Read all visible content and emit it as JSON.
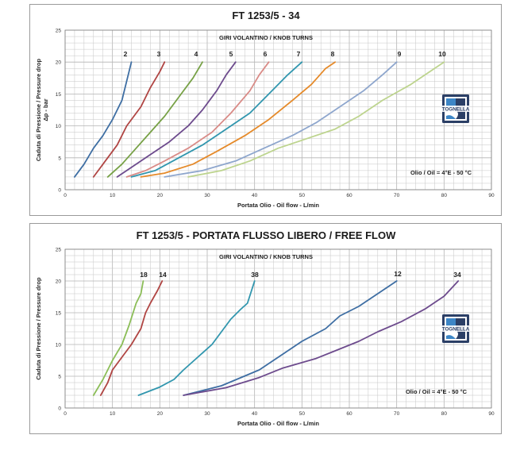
{
  "logo_text": "TOGNELLA",
  "colors": {
    "grid": "#c6c6c6",
    "axis": "#7f7f7f",
    "logo_dark": "#2b3f66",
    "logo_blue": "#3d86c6"
  },
  "chart_data": [
    {
      "type": "line",
      "title": "FT 1253/5 - 34",
      "subtitle": "GIRI VOLANTINO / KNOB TURNS",
      "xlabel": "Portata Olio - Oil flow - L/min",
      "ylabel_lines": [
        "Caduta di Pressione / Pressure drop",
        "Δp - bar"
      ],
      "annotation": "Olio / Oil = 4°E - 50 °C",
      "xlim": [
        0,
        90
      ],
      "ylim": [
        0,
        25
      ],
      "x_ticks": [
        "0",
        "10",
        "20",
        "30",
        "40",
        "50",
        "60",
        "70",
        "80",
        "90"
      ],
      "y_ticks": [
        "0",
        "5",
        "10",
        "15",
        "20",
        "25"
      ],
      "grid": true,
      "series": [
        {
          "name": "2",
          "color": "#3e6ea3",
          "points": [
            [
              2,
              2
            ],
            [
              4,
              4
            ],
            [
              6,
              6.5
            ],
            [
              8,
              8.5
            ],
            [
              10,
              11
            ],
            [
              12,
              14
            ],
            [
              14,
              20
            ]
          ]
        },
        {
          "name": "3",
          "color": "#b04543",
          "points": [
            [
              6,
              2
            ],
            [
              8,
              4
            ],
            [
              11,
              7
            ],
            [
              13,
              10
            ],
            [
              16,
              13
            ],
            [
              18,
              16
            ],
            [
              20,
              18.5
            ],
            [
              21,
              20
            ]
          ]
        },
        {
          "name": "4",
          "color": "#77a146",
          "points": [
            [
              9,
              2
            ],
            [
              12,
              4
            ],
            [
              15,
              6.5
            ],
            [
              18,
              9
            ],
            [
              21,
              11.5
            ],
            [
              24,
              14.5
            ],
            [
              27,
              17.5
            ],
            [
              29,
              20
            ]
          ]
        },
        {
          "name": "5",
          "color": "#6d4b8d",
          "points": [
            [
              11,
              2
            ],
            [
              14,
              3.5
            ],
            [
              18,
              5.5
            ],
            [
              22,
              7.5
            ],
            [
              26,
              10
            ],
            [
              29,
              12.5
            ],
            [
              32,
              15.5
            ],
            [
              34,
              18
            ],
            [
              36,
              20
            ]
          ]
        },
        {
          "name": "6",
          "color": "#d98b87",
          "points": [
            [
              13,
              2
            ],
            [
              17,
              3
            ],
            [
              21,
              4.5
            ],
            [
              26,
              6.5
            ],
            [
              31,
              9
            ],
            [
              35,
              12
            ],
            [
              39,
              15.5
            ],
            [
              41,
              18
            ],
            [
              43,
              20
            ]
          ]
        },
        {
          "name": "7",
          "color": "#3196ae",
          "points": [
            [
              14,
              2
            ],
            [
              19,
              3
            ],
            [
              24,
              5
            ],
            [
              29,
              7
            ],
            [
              34,
              9.5
            ],
            [
              39,
              12
            ],
            [
              43,
              15
            ],
            [
              47,
              18
            ],
            [
              50,
              20
            ]
          ]
        },
        {
          "name": "8",
          "color": "#e58a2a",
          "points": [
            [
              16,
              2
            ],
            [
              21,
              2.6
            ],
            [
              27,
              4
            ],
            [
              32,
              6
            ],
            [
              38,
              8.5
            ],
            [
              43,
              11
            ],
            [
              48,
              14
            ],
            [
              52,
              16.5
            ],
            [
              55,
              19
            ],
            [
              57,
              20
            ]
          ]
        },
        {
          "name": "9",
          "color": "#8ea6cd",
          "points": [
            [
              21,
              2
            ],
            [
              29,
              3
            ],
            [
              36,
              4.5
            ],
            [
              42,
              6.5
            ],
            [
              48,
              8.5
            ],
            [
              53,
              10.5
            ],
            [
              58,
              13
            ],
            [
              63,
              15.5
            ],
            [
              67,
              18
            ],
            [
              70,
              20
            ]
          ]
        },
        {
          "name": "10",
          "color": "#bdd48e",
          "points": [
            [
              26,
              2
            ],
            [
              33,
              3
            ],
            [
              39,
              4.5
            ],
            [
              45,
              6.5
            ],
            [
              51,
              8
            ],
            [
              57,
              9.5
            ],
            [
              62,
              11.5
            ],
            [
              67,
              14
            ],
            [
              73,
              16.5
            ],
            [
              77,
              18.5
            ],
            [
              80,
              20
            ]
          ]
        }
      ]
    },
    {
      "type": "line",
      "title": "FT 1253/5 - PORTATA FLUSSO LIBERO / FREE FLOW",
      "subtitle": "GIRI VOLANTINO / KNOB TURNS",
      "xlabel": "Portata Olio - Oil flow - L/min",
      "ylabel_lines": [
        "Caduta di Pressione / Pressure drop"
      ],
      "annotation": "Olio / Oil = 4°E - 50 °C",
      "xlim": [
        0,
        90
      ],
      "ylim": [
        0,
        25
      ],
      "x_ticks": [
        "0",
        "10",
        "20",
        "30",
        "40",
        "50",
        "60",
        "70",
        "80",
        "90"
      ],
      "y_ticks": [
        "0",
        "5",
        "10",
        "15",
        "20",
        "25"
      ],
      "grid": true,
      "series": [
        {
          "name": "18",
          "color": "#8bbd57",
          "points": [
            [
              6,
              2
            ],
            [
              8,
              4.5
            ],
            [
              10,
              7.5
            ],
            [
              12,
              10
            ],
            [
              13.5,
              13
            ],
            [
              15,
              16.5
            ],
            [
              16,
              18
            ],
            [
              16.5,
              20
            ]
          ]
        },
        {
          "name": "14",
          "color": "#b04543",
          "points": [
            [
              7.5,
              2
            ],
            [
              9,
              4
            ],
            [
              10,
              6
            ],
            [
              12,
              8
            ],
            [
              14,
              10
            ],
            [
              16,
              12.5
            ],
            [
              17,
              15
            ],
            [
              18,
              16.5
            ],
            [
              19.5,
              18.5
            ],
            [
              20.5,
              20
            ]
          ]
        },
        {
          "name": "38",
          "color": "#3196ae",
          "points": [
            [
              15.5,
              2
            ],
            [
              20,
              3.3
            ],
            [
              23,
              4.5
            ],
            [
              25,
              6
            ],
            [
              28,
              8
            ],
            [
              31,
              10
            ],
            [
              33,
              12
            ],
            [
              35,
              14
            ],
            [
              37,
              15.5
            ],
            [
              38.5,
              16.5
            ],
            [
              40,
              20
            ]
          ]
        },
        {
          "name": "12",
          "color": "#3e6ea3",
          "points": [
            [
              25,
              2
            ],
            [
              33,
              3.5
            ],
            [
              41,
              6
            ],
            [
              46,
              8.5
            ],
            [
              50,
              10.5
            ],
            [
              55,
              12.5
            ],
            [
              58,
              14.5
            ],
            [
              62,
              16
            ],
            [
              66,
              18
            ],
            [
              70,
              20
            ]
          ]
        },
        {
          "name": "34",
          "color": "#6d4b8d",
          "points": [
            [
              25,
              2
            ],
            [
              34,
              3.2
            ],
            [
              41,
              4.8
            ],
            [
              46,
              6.3
            ],
            [
              53,
              7.8
            ],
            [
              57,
              9
            ],
            [
              62,
              10.5
            ],
            [
              66,
              12
            ],
            [
              71,
              13.6
            ],
            [
              76,
              15.6
            ],
            [
              80,
              17.6
            ],
            [
              83,
              20
            ]
          ]
        }
      ]
    }
  ]
}
